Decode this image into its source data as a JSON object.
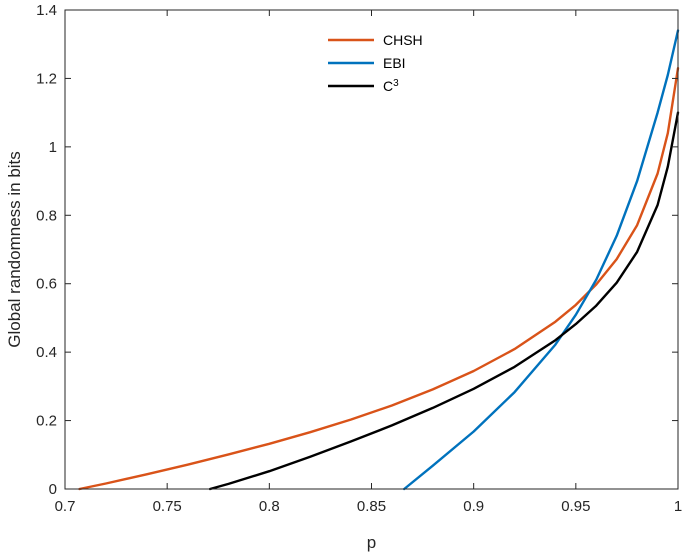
{
  "chart_data": {
    "type": "line",
    "title": "",
    "xlabel": "p",
    "ylabel": "Global randomness in bits",
    "xlim": [
      0.7,
      1.0
    ],
    "ylim": [
      0,
      1.4
    ],
    "xticks": [
      "0.7",
      "0.75",
      "0.8",
      "0.85",
      "0.9",
      "0.95",
      "1"
    ],
    "yticks": [
      "0",
      "0.2",
      "0.4",
      "0.6",
      "0.8",
      "1",
      "1.2",
      "1.4"
    ],
    "xtick_values": [
      0.7,
      0.75,
      0.8,
      0.85,
      0.9,
      0.95,
      1.0
    ],
    "ytick_values": [
      0,
      0.2,
      0.4,
      0.6,
      0.8,
      1.0,
      1.2,
      1.4
    ],
    "grid": false,
    "legend_position": "top-center",
    "series": [
      {
        "name": "CHSH",
        "label_base": "CHSH",
        "label_sup": "",
        "color": "#D95319",
        "x": [
          0.7071,
          0.72,
          0.74,
          0.76,
          0.78,
          0.8,
          0.82,
          0.84,
          0.86,
          0.88,
          0.9,
          0.92,
          0.94,
          0.95,
          0.96,
          0.97,
          0.98,
          0.99,
          0.995,
          1.0
        ],
        "y": [
          0,
          0.016,
          0.043,
          0.071,
          0.101,
          0.132,
          0.166,
          0.203,
          0.244,
          0.291,
          0.345,
          0.409,
          0.489,
          0.538,
          0.598,
          0.672,
          0.771,
          0.922,
          1.04,
          1.23
        ]
      },
      {
        "name": "EBI",
        "label_base": "EBI",
        "label_sup": "",
        "color": "#0072BD",
        "x": [
          0.866,
          0.88,
          0.9,
          0.92,
          0.94,
          0.95,
          0.96,
          0.97,
          0.98,
          0.99,
          0.995,
          1.0
        ],
        "y": [
          0,
          0.068,
          0.168,
          0.283,
          0.422,
          0.509,
          0.612,
          0.74,
          0.9,
          1.1,
          1.21,
          1.34
        ]
      },
      {
        "name": "C³",
        "label_base": "C",
        "label_sup": "3",
        "color": "#000000",
        "x": [
          0.771,
          0.78,
          0.8,
          0.82,
          0.84,
          0.86,
          0.88,
          0.9,
          0.92,
          0.94,
          0.95,
          0.96,
          0.97,
          0.98,
          0.99,
          0.995,
          1.0
        ],
        "y": [
          0,
          0.015,
          0.052,
          0.094,
          0.139,
          0.186,
          0.237,
          0.293,
          0.357,
          0.435,
          0.482,
          0.536,
          0.603,
          0.693,
          0.83,
          0.942,
          1.1
        ]
      }
    ]
  }
}
